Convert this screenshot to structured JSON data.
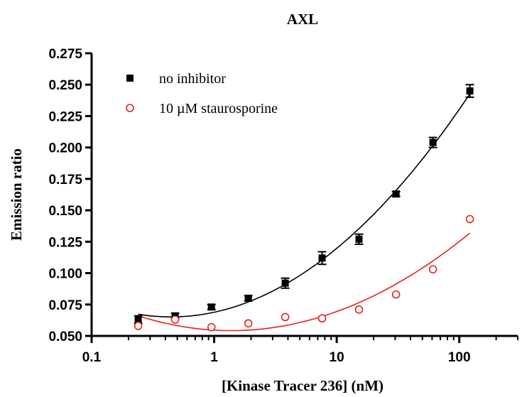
{
  "chart_data": {
    "type": "scatter",
    "title": "AXL",
    "xlabel": "[Kinase Tracer 236] (nM)",
    "ylabel": "Emission ratio",
    "x_scale": "log",
    "xlim": [
      0.1,
      300
    ],
    "ylim": [
      0.05,
      0.275
    ],
    "x_ticks": [
      0.1,
      1,
      10,
      100
    ],
    "x_tick_labels": [
      "0.1",
      "1",
      "10",
      "100"
    ],
    "y_ticks": [
      0.05,
      0.075,
      0.1,
      0.125,
      0.15,
      0.175,
      0.2,
      0.225,
      0.25,
      0.275
    ],
    "y_tick_labels": [
      "0.050",
      "0.075",
      "0.100",
      "0.125",
      "0.150",
      "0.175",
      "0.200",
      "0.225",
      "0.250",
      "0.275"
    ],
    "grid": false,
    "legend_position": "top-left",
    "series": [
      {
        "name": "no inhibitor",
        "marker": "filled-square",
        "color": "#000000",
        "x": [
          0.24,
          0.48,
          0.95,
          1.9,
          3.8,
          7.6,
          15.2,
          30.5,
          61,
          122
        ],
        "y": [
          0.063,
          0.066,
          0.073,
          0.08,
          0.092,
          0.112,
          0.127,
          0.163,
          0.204,
          0.245
        ],
        "error": [
          0.003,
          0.002,
          0.002,
          0.002,
          0.004,
          0.005,
          0.004,
          0.002,
          0.004,
          0.005
        ]
      },
      {
        "name": "10 µM staurosporine",
        "marker": "open-circle",
        "color": "#e8211c",
        "x": [
          0.24,
          0.48,
          0.95,
          1.9,
          3.8,
          7.6,
          15.2,
          30.5,
          61,
          122
        ],
        "y": [
          0.058,
          0.063,
          0.057,
          0.06,
          0.065,
          0.064,
          0.071,
          0.083,
          0.103,
          0.143
        ],
        "error": [
          0,
          0,
          0,
          0,
          0,
          0,
          0,
          0,
          0,
          0
        ]
      }
    ]
  }
}
